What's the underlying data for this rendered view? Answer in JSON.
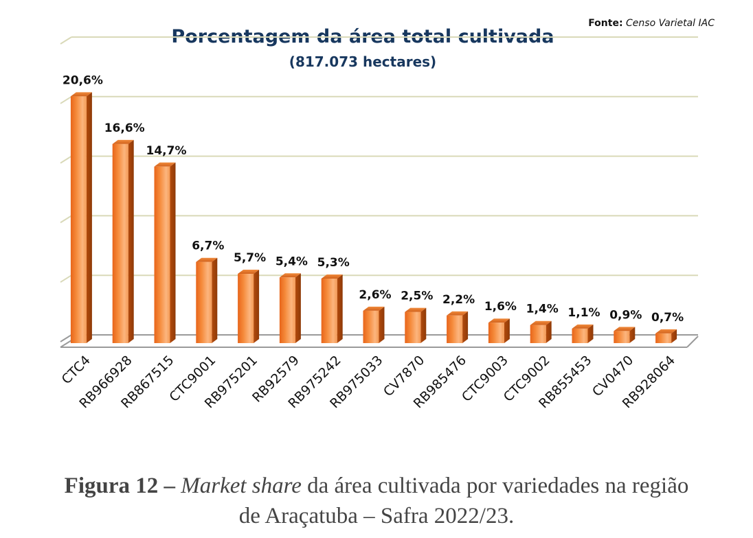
{
  "source": {
    "label": "Fonte:",
    "text": "Censo Varietal  IAC"
  },
  "chart_data": {
    "type": "bar",
    "title": "Porcentagem da área total cultivada",
    "subtitle": "(817.073 hectares)",
    "categories": [
      "CTC4",
      "RB966928",
      "RB867515",
      "CTC9001",
      "RB975201",
      "RB92579",
      "RB975242",
      "RB975033",
      "CV7870",
      "RB985476",
      "CTC9003",
      "CTC9002",
      "RB855453",
      "CV0470",
      "RB928064"
    ],
    "values": [
      20.6,
      16.6,
      14.7,
      6.7,
      5.7,
      5.4,
      5.3,
      2.6,
      2.5,
      2.2,
      1.6,
      1.4,
      1.1,
      0.9,
      0.7
    ],
    "value_labels": [
      "20,6%",
      "16,6%",
      "14,7%",
      "6,7%",
      "5,7%",
      "5,4%",
      "5,3%",
      "2,6%",
      "2,5%",
      "2,2%",
      "1,6%",
      "1,4%",
      "1,1%",
      "0,9%",
      "0,7%"
    ],
    "ylim": [
      0,
      25
    ],
    "grid": true,
    "bar_color": "#F07A1A",
    "title_color": "#17375E"
  },
  "caption": {
    "label": "Figura 12 –",
    "italic": "Market share",
    "line1_rest": "da área cultivada por variedades na região",
    "line2": "de Araçatuba – Safra 2022/23."
  }
}
